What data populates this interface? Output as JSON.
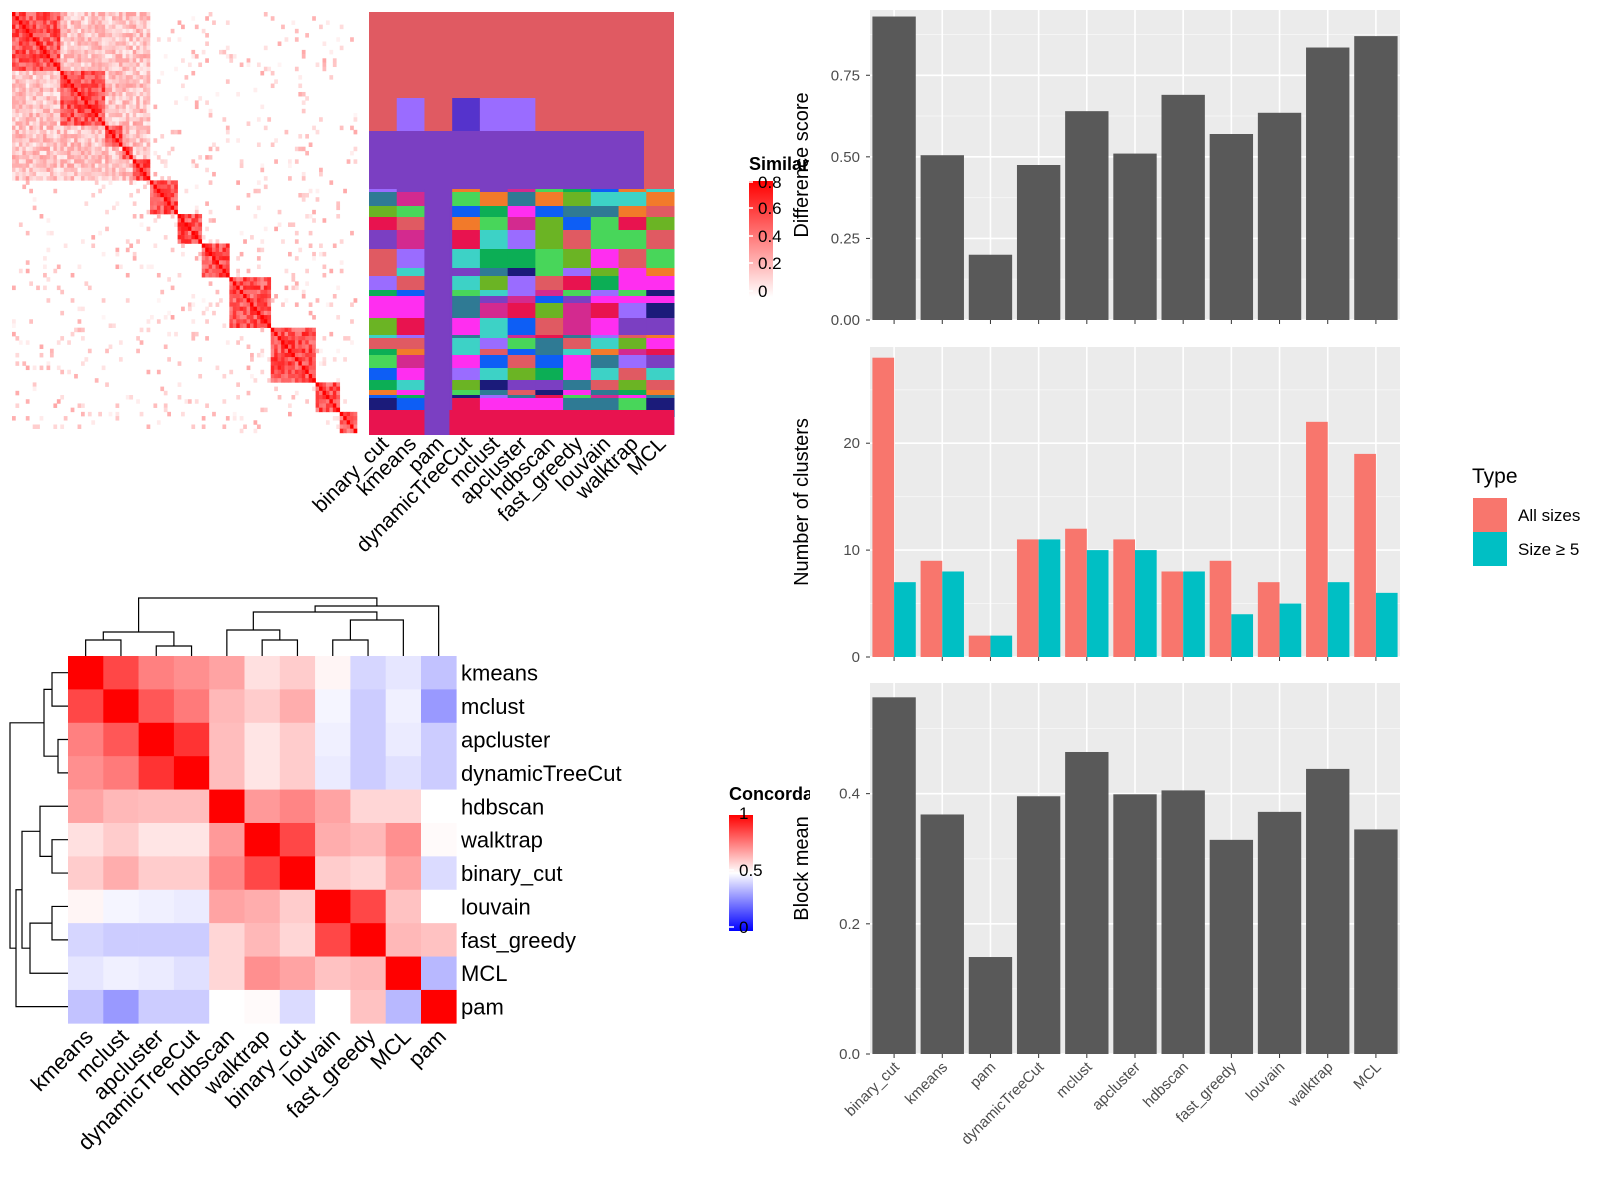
{
  "methods_similarity": [
    "binary_cut",
    "kmeans",
    "pam",
    "dynamicTreeCut",
    "mclust",
    "apcluster",
    "hdbscan",
    "fast_greedy",
    "louvain",
    "walktrap",
    "MCL"
  ],
  "similarity_legend": {
    "title": "Similarity",
    "ticks": [
      "0.8",
      "0.6",
      "0.4",
      "0.2",
      "0"
    ]
  },
  "concordance": {
    "legend_title": "Concordance",
    "legend_ticks": [
      "1",
      "0.5",
      "0"
    ],
    "order": [
      "kmeans",
      "mclust",
      "apcluster",
      "dynamicTreeCut",
      "hdbscan",
      "walktrap",
      "binary_cut",
      "louvain",
      "fast_greedy",
      "MCL",
      "pam"
    ]
  },
  "type_legend": {
    "title": "Type",
    "items": [
      "All sizes",
      "Size ≥ 5"
    ],
    "colors": [
      "#F8766D",
      "#00BFC4"
    ]
  },
  "chart_data": [
    {
      "type": "heatmap",
      "title": "",
      "x": [
        "kmeans",
        "mclust",
        "apcluster",
        "dynamicTreeCut",
        "hdbscan",
        "walktrap",
        "binary_cut",
        "louvain",
        "fast_greedy",
        "MCL",
        "pam"
      ],
      "y": [
        "kmeans",
        "mclust",
        "apcluster",
        "dynamicTreeCut",
        "hdbscan",
        "walktrap",
        "binary_cut",
        "louvain",
        "fast_greedy",
        "MCL",
        "pam"
      ],
      "values": [
        [
          1.0,
          0.86,
          0.75,
          0.72,
          0.68,
          0.56,
          0.6,
          0.52,
          0.42,
          0.45,
          0.38
        ],
        [
          0.86,
          1.0,
          0.83,
          0.76,
          0.64,
          0.6,
          0.66,
          0.48,
          0.4,
          0.47,
          0.3
        ],
        [
          0.75,
          0.83,
          1.0,
          0.9,
          0.63,
          0.55,
          0.6,
          0.47,
          0.4,
          0.46,
          0.4
        ],
        [
          0.72,
          0.76,
          0.9,
          1.0,
          0.63,
          0.55,
          0.6,
          0.46,
          0.4,
          0.44,
          0.4
        ],
        [
          0.68,
          0.64,
          0.63,
          0.63,
          1.0,
          0.7,
          0.74,
          0.68,
          0.58,
          0.58,
          0.5
        ],
        [
          0.56,
          0.6,
          0.55,
          0.55,
          0.7,
          1.0,
          0.86,
          0.66,
          0.64,
          0.72,
          0.51
        ],
        [
          0.6,
          0.66,
          0.6,
          0.6,
          0.74,
          0.86,
          1.0,
          0.6,
          0.58,
          0.68,
          0.43
        ],
        [
          0.52,
          0.48,
          0.47,
          0.46,
          0.68,
          0.66,
          0.6,
          1.0,
          0.86,
          0.62,
          0.5
        ],
        [
          0.42,
          0.4,
          0.4,
          0.4,
          0.58,
          0.64,
          0.58,
          0.86,
          1.0,
          0.64,
          0.62
        ],
        [
          0.45,
          0.47,
          0.46,
          0.44,
          0.58,
          0.72,
          0.68,
          0.62,
          0.64,
          1.0,
          0.36
        ],
        [
          0.38,
          0.3,
          0.4,
          0.4,
          0.5,
          0.51,
          0.43,
          0.5,
          0.62,
          0.36,
          1.0
        ]
      ],
      "color_scale": [
        "#0000FF",
        "#FFFFFF",
        "#FF0000"
      ]
    },
    {
      "type": "bar",
      "categories": [
        "binary_cut",
        "kmeans",
        "pam",
        "dynamicTreeCut",
        "mclust",
        "apcluster",
        "hdbscan",
        "fast_greedy",
        "louvain",
        "walktrap",
        "MCL"
      ],
      "values": [
        0.93,
        0.505,
        0.2,
        0.475,
        0.64,
        0.51,
        0.69,
        0.57,
        0.635,
        0.835,
        0.87
      ],
      "title": "",
      "xlabel": "",
      "ylabel": "Difference score",
      "ylim": [
        0,
        0.95
      ],
      "yticks": [
        "0.00",
        "0.25",
        "0.50",
        "0.75"
      ]
    },
    {
      "type": "bar",
      "categories": [
        "binary_cut",
        "kmeans",
        "pam",
        "dynamicTreeCut",
        "mclust",
        "apcluster",
        "hdbscan",
        "fast_greedy",
        "louvain",
        "walktrap",
        "MCL"
      ],
      "series": [
        {
          "name": "All sizes",
          "values": [
            28,
            9,
            2,
            11,
            12,
            11,
            8,
            9,
            7,
            22,
            19
          ]
        },
        {
          "name": "Size ≥ 5",
          "values": [
            7,
            8,
            2,
            11,
            10,
            10,
            8,
            4,
            5,
            7,
            6
          ]
        }
      ],
      "title": "",
      "xlabel": "",
      "ylabel": "Number of clusters",
      "ylim": [
        0,
        29
      ],
      "yticks": [
        "0",
        "10",
        "20"
      ]
    },
    {
      "type": "bar",
      "categories": [
        "binary_cut",
        "kmeans",
        "pam",
        "dynamicTreeCut",
        "mclust",
        "apcluster",
        "hdbscan",
        "fast_greedy",
        "louvain",
        "walktrap",
        "MCL"
      ],
      "values": [
        0.548,
        0.368,
        0.149,
        0.396,
        0.464,
        0.399,
        0.405,
        0.329,
        0.372,
        0.438,
        0.345
      ],
      "title": "",
      "xlabel": "",
      "ylabel": "Block mean",
      "ylim": [
        0,
        0.57
      ],
      "yticks": [
        "0.0",
        "0.2",
        "0.4"
      ]
    }
  ]
}
